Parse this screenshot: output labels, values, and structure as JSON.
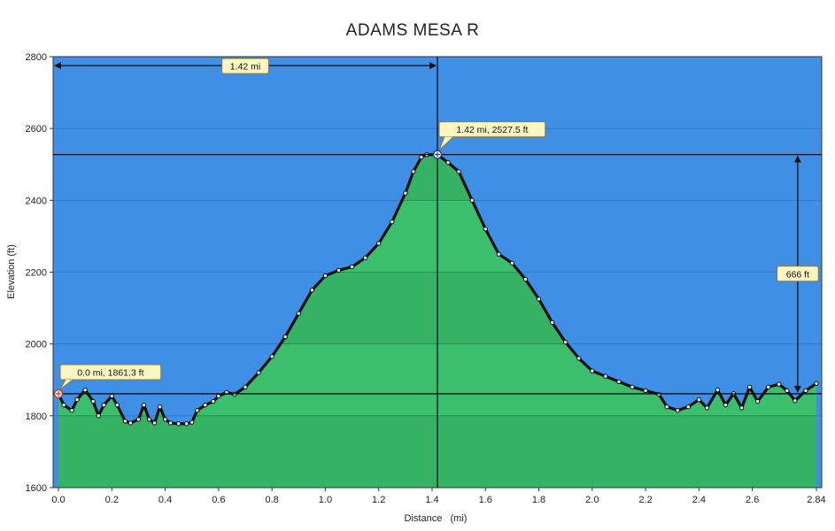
{
  "chart_data": {
    "type": "area",
    "title": "ADAMS MESA R",
    "xlabel": "Distance   (mi)",
    "ylabel": "Elevation (ft)",
    "xlim": [
      -0.02,
      2.86
    ],
    "ylim": [
      1600,
      2800
    ],
    "x_ticks": [
      "0.0",
      "0.2",
      "0.4",
      "0.6",
      "0.8",
      "1.0",
      "1.2",
      "1.4",
      "1.6",
      "1.8",
      "2.0",
      "2.2",
      "2.4",
      "2.6",
      "2.84"
    ],
    "x_tick_values": [
      0.0,
      0.2,
      0.4,
      0.6,
      0.8,
      1.0,
      1.2,
      1.4,
      1.6,
      1.8,
      2.0,
      2.2,
      2.4,
      2.6,
      2.84
    ],
    "y_ticks": [
      "1600",
      "1800",
      "2000",
      "2200",
      "2400",
      "2600",
      "2800"
    ],
    "y_tick_values": [
      1600,
      1800,
      2000,
      2200,
      2400,
      2600,
      2800
    ],
    "grid": true,
    "colors": {
      "sky": "#3f8fe6",
      "fill": "#3cbf6c",
      "fill_dark": "#2fa85c",
      "line": "#111111"
    },
    "series": [
      {
        "x": [
          0.0,
          0.02,
          0.05,
          0.07,
          0.1,
          0.13,
          0.15,
          0.17,
          0.2,
          0.22,
          0.25,
          0.27,
          0.3,
          0.32,
          0.34,
          0.36,
          0.38,
          0.4,
          0.42,
          0.45,
          0.48,
          0.5,
          0.52,
          0.55,
          0.58,
          0.6,
          0.63,
          0.66,
          0.7,
          0.75,
          0.8,
          0.85,
          0.9,
          0.95,
          1.0,
          1.05,
          1.1,
          1.15,
          1.2,
          1.25,
          1.3,
          1.33,
          1.36,
          1.38,
          1.42,
          1.46,
          1.5,
          1.55,
          1.6,
          1.65,
          1.7,
          1.75,
          1.8,
          1.85,
          1.9,
          1.95,
          2.0,
          2.05,
          2.1,
          2.15,
          2.2,
          2.25,
          2.28,
          2.32,
          2.36,
          2.4,
          2.43,
          2.47,
          2.5,
          2.53,
          2.56,
          2.59,
          2.62,
          2.66,
          2.7,
          2.73,
          2.76,
          2.8,
          2.84
        ],
        "y": [
          1861,
          1830,
          1815,
          1845,
          1872,
          1840,
          1800,
          1830,
          1855,
          1830,
          1785,
          1780,
          1790,
          1830,
          1790,
          1780,
          1825,
          1790,
          1780,
          1778,
          1778,
          1782,
          1815,
          1830,
          1840,
          1855,
          1865,
          1860,
          1880,
          1920,
          1965,
          2020,
          2085,
          2150,
          2190,
          2205,
          2215,
          2240,
          2280,
          2340,
          2420,
          2480,
          2520,
          2527,
          2527.5,
          2505,
          2480,
          2400,
          2320,
          2250,
          2225,
          2180,
          2125,
          2060,
          2005,
          1960,
          1925,
          1910,
          1895,
          1880,
          1870,
          1860,
          1825,
          1815,
          1825,
          1845,
          1822,
          1872,
          1830,
          1862,
          1822,
          1880,
          1840,
          1880,
          1888,
          1870,
          1842,
          1870,
          1890
        ]
      }
    ],
    "annotations": {
      "start_label": "0.0 mi, 1861.3 ft",
      "start_x": 0.0,
      "start_y": 1861.3,
      "peak_label": "1.42 mi, 2527.5 ft",
      "peak_x": 1.42,
      "peak_y": 2527.5,
      "distance_label": "1.42 mi",
      "distance_y": 2775,
      "gain_label": "666 ft",
      "gain_x": 2.77
    }
  }
}
